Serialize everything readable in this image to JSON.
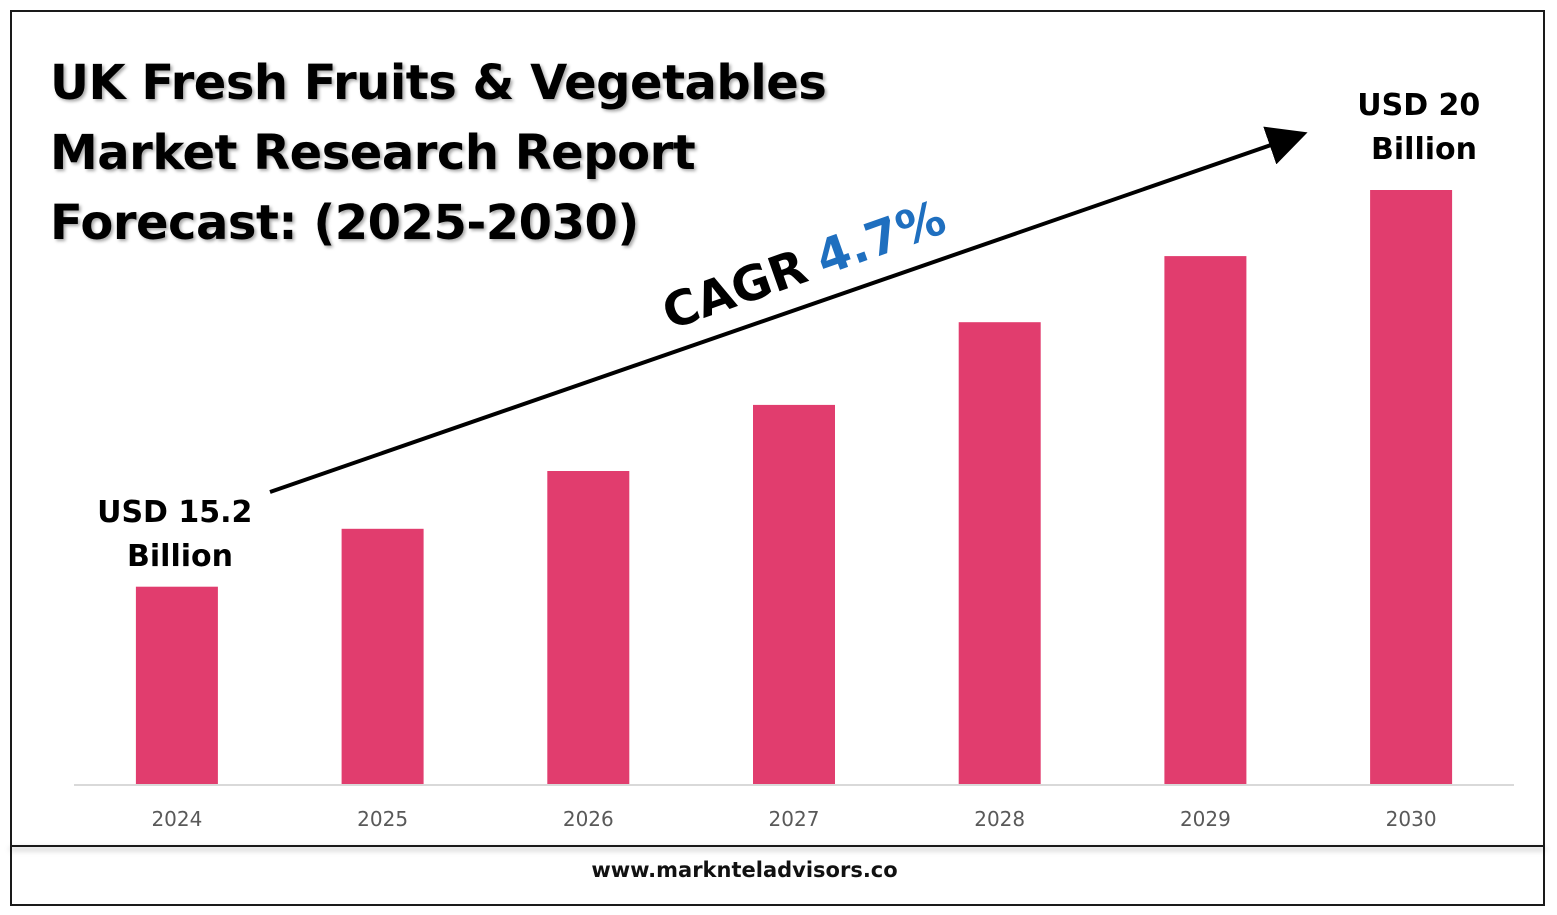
{
  "title": {
    "line1": "UK Fresh Fruits & Vegetables",
    "line2": "Market Research Report",
    "line3": "Forecast: (2025-2030)"
  },
  "footer": {
    "url": "www.marknteladvisors.co"
  },
  "colors": {
    "bar": "#E13D6E",
    "cagr_value": "#1F6FBF",
    "text": "#000000",
    "tick": "#595959",
    "baseline": "#D9D9D9"
  },
  "chart_data": {
    "type": "bar",
    "categories": [
      "2024",
      "2025",
      "2026",
      "2027",
      "2028",
      "2029",
      "2030"
    ],
    "values": [
      15.2,
      15.9,
      16.6,
      17.4,
      18.4,
      19.2,
      20.0
    ],
    "ylim": [
      12.8,
      20.8
    ],
    "grid": false,
    "legend": "none",
    "annotations": {
      "start_line1": "USD 15.2",
      "start_line2": "Billion",
      "end_line1": "USD 20",
      "end_line2": "Billion",
      "cagr_label": "CAGR",
      "cagr_value": "4.7%"
    }
  }
}
